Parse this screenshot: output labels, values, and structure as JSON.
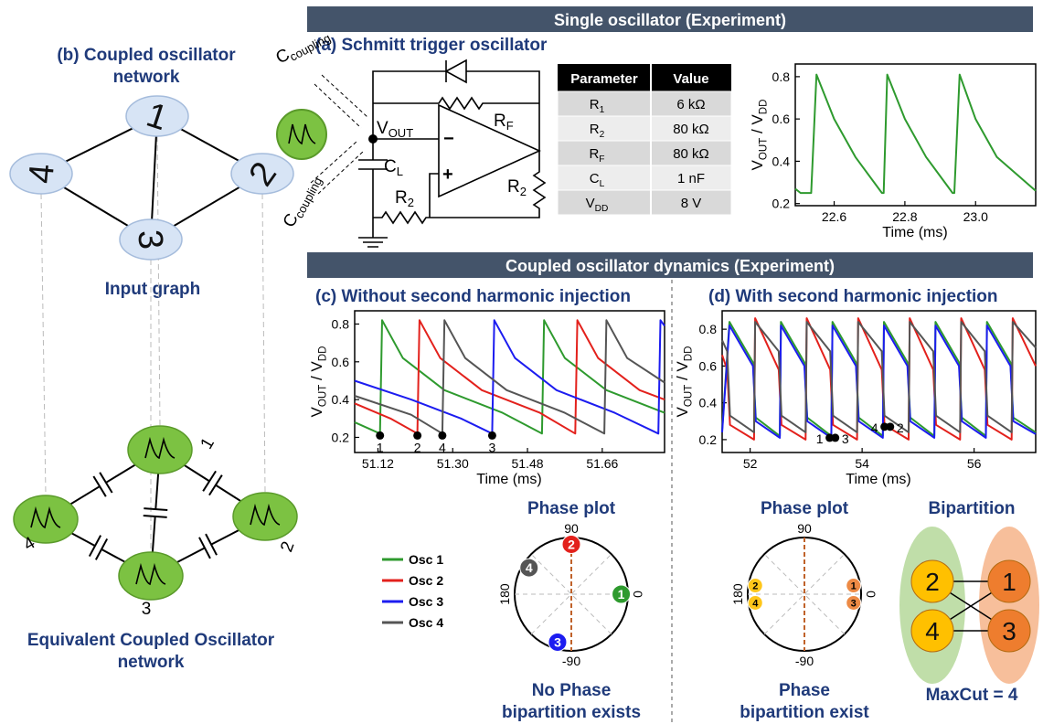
{
  "banners": [
    "Single oscillator (Experiment)",
    "Coupled oscillator dynamics (Experiment)"
  ],
  "panel_b": {
    "title": [
      "(b) Coupled oscillator",
      "network"
    ],
    "graph_caption": "Input graph",
    "network_caption": [
      "Equivalent Coupled Oscillator",
      "network"
    ],
    "nodes": [
      "1",
      "2",
      "3",
      "4"
    ],
    "edges": [
      [
        "1",
        "2"
      ],
      [
        "1",
        "3"
      ],
      [
        "1",
        "4"
      ],
      [
        "2",
        "3"
      ],
      [
        "3",
        "4"
      ]
    ]
  },
  "panel_a": {
    "title": "(a) Schmitt trigger oscillator",
    "circuit_labels": {
      "coupling_top": [
        "C",
        "coupling"
      ],
      "coupling_bottom": [
        "C",
        "coupling"
      ],
      "vout": [
        "V",
        "OUT"
      ],
      "rf": [
        "R",
        "F"
      ],
      "cl": [
        "C",
        "L"
      ],
      "r2_left": [
        "R",
        "2"
      ],
      "r2_right": [
        "R",
        "2"
      ],
      "minus": "−",
      "plus": "+"
    },
    "table": {
      "header": [
        "Parameter",
        "Value"
      ],
      "rows": [
        [
          [
            "R",
            "1"
          ],
          "6 kΩ"
        ],
        [
          [
            "R",
            "2"
          ],
          "80 kΩ"
        ],
        [
          [
            "R",
            "F"
          ],
          "80 kΩ"
        ],
        [
          [
            "C",
            "L"
          ],
          "1 nF"
        ],
        [
          [
            "V",
            "DD"
          ],
          "8 V"
        ]
      ]
    }
  },
  "chart_data": [
    {
      "type": "line",
      "xlabel": "Time (ms)",
      "ylabel": [
        "V",
        "OUT",
        " / V",
        "DD"
      ],
      "xlim": [
        22.49,
        23.17
      ],
      "ylim": [
        0.19,
        0.86
      ],
      "xticks": [
        22.6,
        22.8,
        {
          "value": 23,
          "label": "23.0"
        }
      ],
      "yticks": [
        0.2,
        0.4,
        0.6,
        0.8
      ],
      "series": [
        {
          "color": "#2e9a2e",
          "x": [
            22.49,
            22.505,
            22.535,
            22.55,
            22.6,
            22.66,
            22.735,
            22.74,
            22.75,
            22.8,
            22.86,
            22.935,
            22.94,
            22.955,
            23.0,
            23.06,
            23.17
          ],
          "values": [
            0.27,
            0.25,
            0.25,
            0.81,
            0.6,
            0.42,
            0.25,
            0.25,
            0.81,
            0.6,
            0.42,
            0.25,
            0.25,
            0.81,
            0.6,
            0.42,
            0.26
          ]
        }
      ]
    },
    {
      "type": "line",
      "title": "(c) Without second harmonic injection",
      "xlabel": "Time (ms)",
      "ylabel": [
        "V",
        "OUT",
        " / V",
        "DD"
      ],
      "xlim": [
        51.064,
        51.81
      ],
      "ylim": [
        0.12,
        0.87
      ],
      "xticks": [
        51.12,
        {
          "value": 51.3,
          "label": "51.30"
        },
        51.48,
        51.66
      ],
      "yticks": [
        0.2,
        0.4,
        0.6,
        0.8
      ],
      "series": [
        {
          "name": "Osc 1",
          "color": "#2e9a2e",
          "x": [
            51.064,
            51.125,
            51.13,
            51.18,
            51.28,
            51.42,
            51.515,
            51.52,
            51.57,
            51.67,
            51.81
          ],
          "values": [
            0.28,
            0.22,
            0.82,
            0.62,
            0.45,
            0.33,
            0.22,
            0.82,
            0.62,
            0.45,
            0.33
          ]
        },
        {
          "name": "Osc 2",
          "color": "#e3211c",
          "x": [
            51.064,
            51.15,
            51.215,
            51.22,
            51.27,
            51.37,
            51.51,
            51.595,
            51.6,
            51.65,
            51.75,
            51.81
          ],
          "values": [
            0.38,
            0.3,
            0.22,
            0.82,
            0.62,
            0.45,
            0.33,
            0.22,
            0.82,
            0.62,
            0.45,
            0.4
          ]
        },
        {
          "name": "Osc 3",
          "color": "#1c1cf0",
          "x": [
            51.064,
            51.2,
            51.32,
            51.395,
            51.4,
            51.45,
            51.55,
            51.69,
            51.795,
            51.8,
            51.81
          ],
          "values": [
            0.5,
            0.4,
            0.3,
            0.22,
            0.82,
            0.62,
            0.45,
            0.33,
            0.22,
            0.82,
            0.79
          ]
        },
        {
          "name": "Osc 4",
          "color": "#555555",
          "x": [
            51.064,
            51.2,
            51.275,
            51.28,
            51.33,
            51.43,
            51.57,
            51.665,
            51.67,
            51.72,
            51.81
          ],
          "values": [
            0.42,
            0.32,
            0.22,
            0.82,
            0.62,
            0.45,
            0.33,
            0.22,
            0.82,
            0.62,
            0.49
          ]
        }
      ],
      "markers": [
        {
          "label": "1",
          "x": 51.125,
          "y": 0.21
        },
        {
          "label": "2",
          "x": 51.215,
          "y": 0.21
        },
        {
          "label": "4",
          "x": 51.275,
          "y": 0.21
        },
        {
          "label": "3",
          "x": 51.395,
          "y": 0.21
        }
      ]
    },
    {
      "type": "line",
      "title": "(d) With second harmonic injection",
      "xlabel": "Time (ms)",
      "ylabel": [
        "V",
        "OUT",
        " / V",
        "DD"
      ],
      "xlim": [
        51.5,
        57.1
      ],
      "ylim": [
        0.13,
        0.9
      ],
      "xticks": [
        52,
        54,
        56
      ],
      "yticks": [
        0.2,
        0.4,
        0.6,
        0.8
      ],
      "series": [
        {
          "color": "#2e9a2e",
          "x": [
            51.5,
            51.63,
            52.05,
            52.1,
            52.53,
            52.55,
            52.97,
            53.02,
            53.45,
            53.47,
            53.89,
            53.94,
            54.37,
            54.39,
            54.81,
            54.86,
            55.29,
            55.31,
            55.73,
            55.78,
            56.21,
            56.23,
            56.65,
            56.7,
            57.1
          ],
          "values": [
            0.25,
            0.84,
            0.62,
            0.32,
            0.22,
            0.84,
            0.62,
            0.32,
            0.22,
            0.84,
            0.62,
            0.32,
            0.22,
            0.84,
            0.62,
            0.32,
            0.22,
            0.84,
            0.62,
            0.32,
            0.22,
            0.84,
            0.62,
            0.32,
            0.24
          ]
        },
        {
          "color": "#e3211c",
          "x": [
            51.5,
            51.59,
            51.64,
            52.07,
            52.09,
            52.51,
            52.56,
            52.99,
            53.01,
            53.43,
            53.48,
            53.91,
            53.93,
            54.35,
            54.4,
            54.83,
            54.85,
            55.27,
            55.32,
            55.75,
            55.77,
            56.19,
            56.24,
            56.67,
            56.69,
            57.1
          ],
          "values": [
            0.66,
            0.58,
            0.28,
            0.2,
            0.86,
            0.58,
            0.28,
            0.2,
            0.86,
            0.58,
            0.28,
            0.2,
            0.86,
            0.58,
            0.28,
            0.2,
            0.86,
            0.58,
            0.28,
            0.2,
            0.86,
            0.58,
            0.28,
            0.2,
            0.86,
            0.6
          ]
        },
        {
          "color": "#1c1cf0",
          "x": [
            51.5,
            51.63,
            52.05,
            52.1,
            52.53,
            52.55,
            52.97,
            53.02,
            53.45,
            53.47,
            53.89,
            53.94,
            54.37,
            54.39,
            54.81,
            54.86,
            55.29,
            55.31,
            55.73,
            55.78,
            56.21,
            56.23,
            56.65,
            56.7,
            57.1
          ],
          "values": [
            0.24,
            0.82,
            0.6,
            0.3,
            0.21,
            0.82,
            0.6,
            0.3,
            0.21,
            0.82,
            0.6,
            0.3,
            0.21,
            0.82,
            0.6,
            0.3,
            0.21,
            0.82,
            0.6,
            0.3,
            0.21,
            0.82,
            0.6,
            0.3,
            0.23
          ]
        },
        {
          "color": "#555555",
          "x": [
            51.5,
            51.59,
            51.64,
            52.07,
            52.09,
            52.51,
            52.56,
            52.99,
            53.01,
            53.43,
            53.48,
            53.91,
            53.93,
            54.35,
            54.4,
            54.83,
            54.85,
            55.27,
            55.32,
            55.75,
            55.77,
            56.19,
            56.24,
            56.67,
            56.69,
            57.1
          ],
          "values": [
            0.74,
            0.68,
            0.33,
            0.24,
            0.84,
            0.68,
            0.33,
            0.24,
            0.84,
            0.68,
            0.33,
            0.24,
            0.84,
            0.68,
            0.33,
            0.24,
            0.84,
            0.68,
            0.33,
            0.24,
            0.84,
            0.68,
            0.33,
            0.24,
            0.84,
            0.7
          ]
        }
      ],
      "markers": [
        {
          "label": "1",
          "x": 53.42,
          "y": 0.21
        },
        {
          "label": "3",
          "x": 53.52,
          "y": 0.21
        },
        {
          "label": "4",
          "x": 54.4,
          "y": 0.27
        },
        {
          "label": "2",
          "x": 54.5,
          "y": 0.27
        }
      ]
    }
  ],
  "phase_plots": [
    {
      "title": "Phase plot",
      "axis_labels": {
        "top": "90",
        "right": "0",
        "left": "180",
        "bottom": "-90"
      },
      "points": [
        {
          "label": "1",
          "angle": 0,
          "color": "#2e9a2e"
        },
        {
          "label": "2",
          "angle": 90,
          "color": "#e3211c"
        },
        {
          "label": "4",
          "angle": 148,
          "color": "#555555"
        },
        {
          "label": "3",
          "angle": -106,
          "color": "#1c1cf0"
        }
      ],
      "caption": [
        "No Phase",
        "bipartition exists"
      ]
    },
    {
      "title": "Phase plot",
      "axis_labels": {
        "top": "90",
        "right": "0",
        "left": "180",
        "bottom": "-90"
      },
      "points": [
        {
          "label": "1",
          "angle": 10,
          "color": "#ed8a45"
        },
        {
          "label": "3",
          "angle": -10,
          "color": "#ed8a45"
        },
        {
          "label": "2",
          "angle": 170,
          "color": "#ffc61a"
        },
        {
          "label": "4",
          "angle": 190,
          "color": "#ffc61a"
        }
      ],
      "caption": [
        "Phase",
        "bipartition exist"
      ]
    }
  ],
  "bipartition": {
    "title": "Bipartition",
    "groups": [
      {
        "nodes": [
          "2",
          "4"
        ],
        "color": "#b5d89a",
        "node_color": "#ffc000"
      },
      {
        "nodes": [
          "1",
          "3"
        ],
        "color": "#f6b48a",
        "node_color": "#ee7d2e"
      }
    ],
    "caption": "MaxCut = 4"
  }
}
